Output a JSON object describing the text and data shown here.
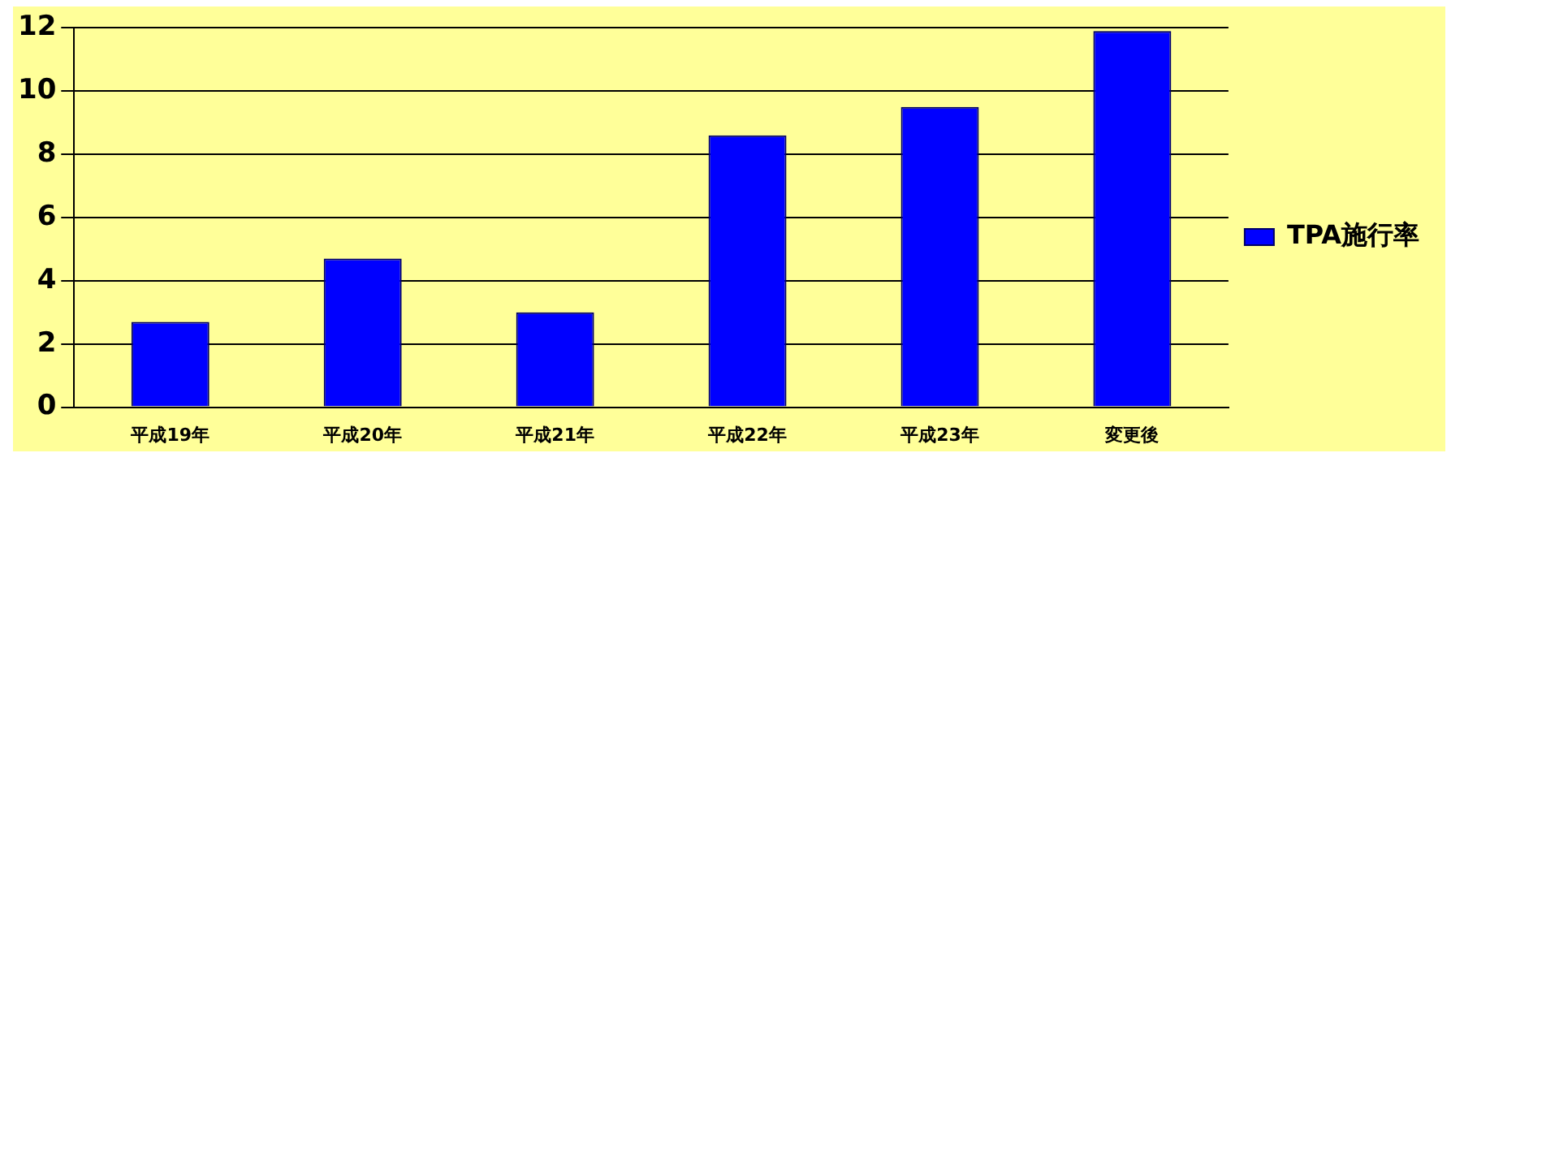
{
  "chart_data": {
    "type": "bar",
    "categories": [
      "平成19年",
      "平成20年",
      "平成21年",
      "平成22年",
      "平成23年",
      "変更後"
    ],
    "series": [
      {
        "name": "TPA施行率",
        "color": "#0000ff",
        "values": [
          2.7,
          4.7,
          3.0,
          8.6,
          9.5,
          11.9
        ]
      }
    ],
    "ylim": [
      0,
      12
    ],
    "yticks": [
      0,
      2,
      4,
      6,
      8,
      10,
      12
    ],
    "grid": "y",
    "legend": "right"
  }
}
